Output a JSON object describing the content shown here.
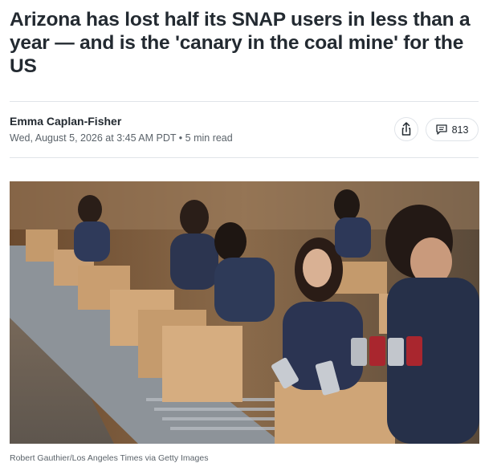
{
  "article": {
    "headline": "Arizona has lost half its SNAP users in less than a year — and is the 'canary in the coal mine' for the US",
    "author": "Emma Caplan-Fisher",
    "date": "Wed, August 5, 2026 at 3:45 AM PDT",
    "read_time": "5 min read",
    "comment_count": "813",
    "photo_credit": "Robert Gauthier/Los Angeles Times via Getty Images"
  }
}
